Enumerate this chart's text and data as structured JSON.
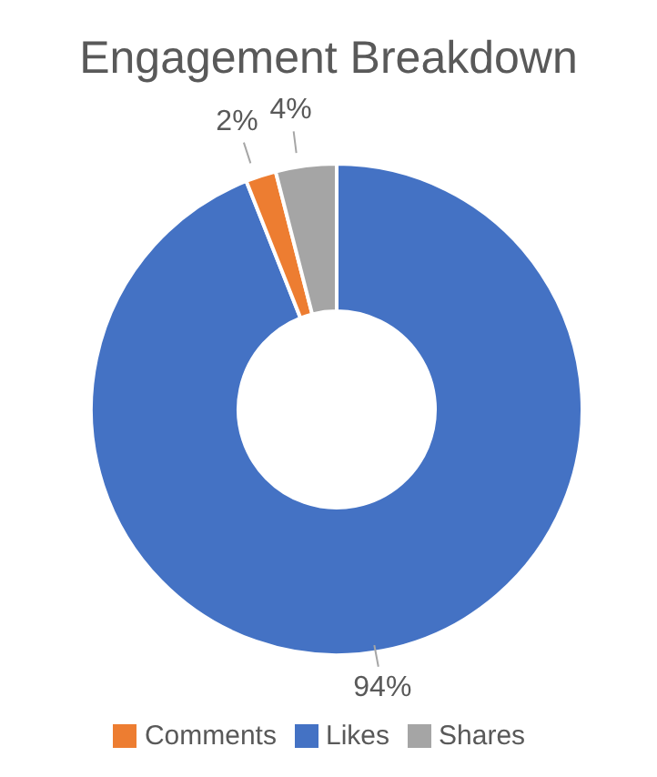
{
  "chart_data": {
    "type": "donut",
    "title": "Engagement Breakdown",
    "categories": [
      "Likes",
      "Comments",
      "Shares"
    ],
    "values": [
      94,
      2,
      4
    ],
    "colors": [
      "#4472c4",
      "#ed7d31",
      "#a5a5a5"
    ],
    "value_labels": [
      "94%",
      "2%",
      "4%"
    ],
    "legend": "bottom"
  }
}
